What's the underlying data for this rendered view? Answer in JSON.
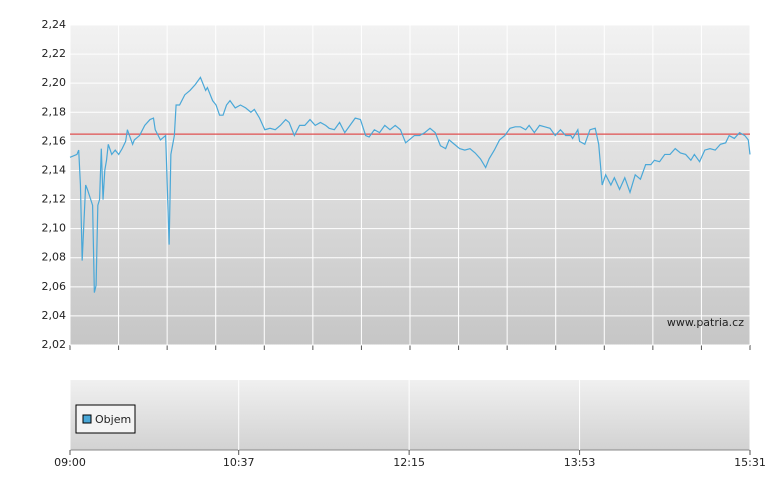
{
  "chart_data": [
    {
      "type": "line",
      "x": [
        "09:00",
        "09:04",
        "09:05",
        "09:06",
        "09:07",
        "09:09",
        "09:10",
        "09:13",
        "09:14",
        "09:15",
        "09:16",
        "09:17",
        "09:18",
        "09:19",
        "09:20",
        "09:21",
        "09:22",
        "09:24",
        "09:26",
        "09:28",
        "09:30",
        "09:32",
        "09:33",
        "09:36",
        "09:37",
        "09:40",
        "09:43",
        "09:46",
        "09:48",
        "09:49",
        "09:52",
        "09:55",
        "09:57",
        "09:58",
        "10:00",
        "10:01",
        "10:03",
        "10:06",
        "10:09",
        "10:12",
        "10:15",
        "10:18",
        "10:19",
        "10:22",
        "10:24",
        "10:26",
        "10:28",
        "10:30",
        "10:32",
        "10:35",
        "10:38",
        "10:41",
        "10:44",
        "10:46",
        "10:49",
        "10:52",
        "10:55",
        "10:58",
        "11:01",
        "11:04",
        "11:06",
        "11:09",
        "11:12",
        "11:15",
        "11:18",
        "11:21",
        "11:24",
        "11:27",
        "11:29",
        "11:32",
        "11:35",
        "11:38",
        "11:41",
        "11:44",
        "11:47",
        "11:50",
        "11:52",
        "11:55",
        "11:58",
        "12:01",
        "12:04",
        "12:07",
        "12:10",
        "12:13",
        "12:15",
        "12:18",
        "12:21",
        "12:24",
        "12:27",
        "12:30",
        "12:33",
        "12:36",
        "12:38",
        "12:41",
        "12:44",
        "12:47",
        "12:50",
        "12:53",
        "12:56",
        "12:59",
        "13:01",
        "13:04",
        "13:07",
        "13:10",
        "13:13",
        "13:16",
        "13:19",
        "13:22",
        "13:24",
        "13:27",
        "13:30",
        "13:33",
        "13:36",
        "13:39",
        "13:42",
        "13:45",
        "13:48",
        "13:49",
        "13:52",
        "13:53",
        "13:56",
        "13:59",
        "14:02",
        "14:04",
        "14:06",
        "14:08",
        "14:11",
        "14:13",
        "14:16",
        "14:19",
        "14:22",
        "14:25",
        "14:28",
        "14:31",
        "14:34",
        "14:36",
        "14:39",
        "14:42",
        "14:45",
        "14:48",
        "14:51",
        "14:54",
        "14:57",
        "14:59",
        "15:02",
        "15:05",
        "15:08",
        "15:11",
        "15:14",
        "15:17",
        "15:19",
        "15:22",
        "15:25",
        "15:28",
        "15:30",
        "15:31"
      ],
      "series": [
        {
          "color": "#4aa8d8",
          "values": [
            2.149,
            2.151,
            2.154,
            2.13,
            2.078,
            2.13,
            2.127,
            2.116,
            2.056,
            2.061,
            2.116,
            2.12,
            2.155,
            2.12,
            2.14,
            2.147,
            2.158,
            2.151,
            2.154,
            2.151,
            2.155,
            2.16,
            2.168,
            2.158,
            2.161,
            2.164,
            2.171,
            2.175,
            2.176,
            2.168,
            2.161,
            2.164,
            2.089,
            2.151,
            2.164,
            2.185,
            2.185,
            2.192,
            2.195,
            2.199,
            2.204,
            2.195,
            2.197,
            2.188,
            2.185,
            2.178,
            2.178,
            2.185,
            2.188,
            2.183,
            2.185,
            2.183,
            2.18,
            2.182,
            2.176,
            2.168,
            2.169,
            2.168,
            2.171,
            2.175,
            2.173,
            2.164,
            2.171,
            2.171,
            2.175,
            2.171,
            2.173,
            2.171,
            2.169,
            2.168,
            2.173,
            2.166,
            2.171,
            2.176,
            2.175,
            2.164,
            2.163,
            2.168,
            2.166,
            2.171,
            2.168,
            2.171,
            2.168,
            2.159,
            2.161,
            2.164,
            2.164,
            2.166,
            2.169,
            2.166,
            2.157,
            2.155,
            2.161,
            2.158,
            2.155,
            2.154,
            2.155,
            2.152,
            2.148,
            2.142,
            2.148,
            2.154,
            2.161,
            2.164,
            2.169,
            2.17,
            2.17,
            2.168,
            2.171,
            2.166,
            2.171,
            2.17,
            2.169,
            2.164,
            2.168,
            2.164,
            2.164,
            2.162,
            2.168,
            2.16,
            2.158,
            2.168,
            2.169,
            2.158,
            2.13,
            2.137,
            2.13,
            2.135,
            2.127,
            2.135,
            2.125,
            2.137,
            2.134,
            2.144,
            2.144,
            2.147,
            2.146,
            2.151,
            2.151,
            2.155,
            2.152,
            2.151,
            2.147,
            2.151,
            2.146,
            2.154,
            2.155,
            2.154,
            2.158,
            2.159,
            2.164,
            2.162,
            2.166,
            2.164,
            2.161,
            2.151
          ]
        }
      ],
      "reference_line": {
        "value": 2.165,
        "color": "#e05050"
      },
      "xlim": [
        "09:00",
        "15:31"
      ],
      "ylim": [
        2.02,
        2.24
      ],
      "yticks": [
        {
          "value": 2.02,
          "label": "2,02"
        },
        {
          "value": 2.04,
          "label": "2,04"
        },
        {
          "value": 2.06,
          "label": "2,06"
        },
        {
          "value": 2.08,
          "label": "2,08"
        },
        {
          "value": 2.1,
          "label": "2,10"
        },
        {
          "value": 2.12,
          "label": "2,12"
        },
        {
          "value": 2.14,
          "label": "2,14"
        },
        {
          "value": 2.16,
          "label": "2,16"
        },
        {
          "value": 2.18,
          "label": "2,18"
        },
        {
          "value": 2.2,
          "label": "2,20"
        },
        {
          "value": 2.22,
          "label": "2,22"
        },
        {
          "value": 2.24,
          "label": "2,24"
        }
      ],
      "grid": true,
      "annotation": "www.patria.cz"
    },
    {
      "type": "bar",
      "series": [
        {
          "name": "Objem",
          "color": "#4aa8d8",
          "values": []
        }
      ],
      "xlim": [
        "09:00",
        "15:31"
      ],
      "xticks": [
        "09:00",
        "10:37",
        "12:15",
        "13:53",
        "15:31"
      ],
      "grid": true,
      "legend": "bottom-left"
    }
  ]
}
